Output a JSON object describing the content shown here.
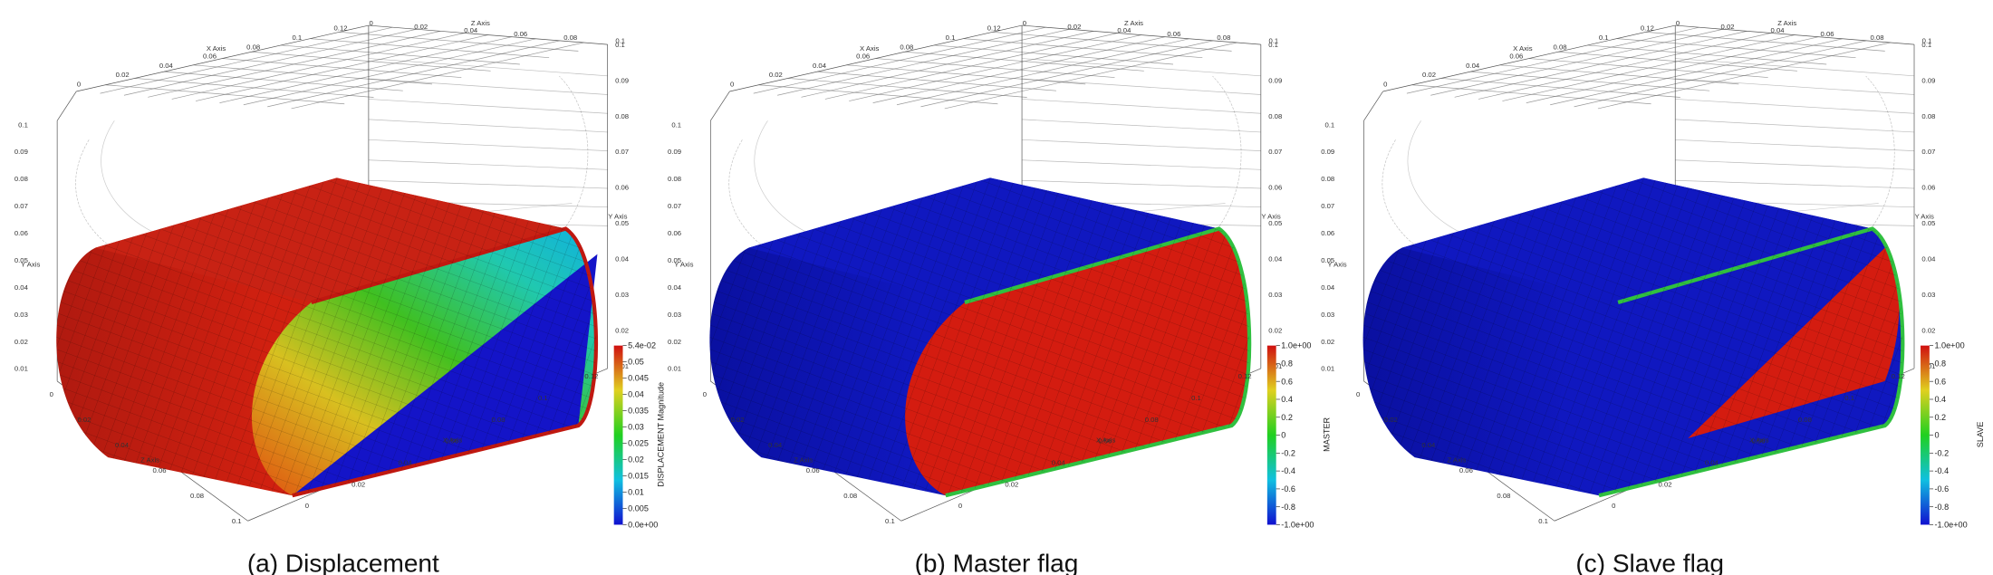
{
  "axes": {
    "x_title": "X Axis",
    "y_title": "Y Axis",
    "z_title": "Z Axis",
    "x_ticks": [
      "0",
      "0.02",
      "0.04",
      "0.06",
      "0.08",
      "0.1",
      "0.12"
    ],
    "y_ticks": [
      "0.01",
      "0.02",
      "0.03",
      "0.04",
      "0.05",
      "0.06",
      "0.07",
      "0.08",
      "0.09",
      "0.1"
    ],
    "z_ticks": [
      "0",
      "0.02",
      "0.04",
      "0.06",
      "0.08",
      "0.1"
    ]
  },
  "panels": [
    {
      "caption": "(a) Displacement",
      "colorbar": {
        "title": "DISPLACEMENT Magnitude",
        "ticks": [
          "5.4e-02",
          "0.05",
          "0.045",
          "0.04",
          "0.035",
          "0.03",
          "0.025",
          "0.02",
          "0.015",
          "0.01",
          "0.005",
          "0.0e+00"
        ]
      }
    },
    {
      "caption": "(b) Master flag",
      "colorbar": {
        "title": "MASTER",
        "ticks": [
          "1.0e+00",
          "0.8",
          "0.6",
          "0.4",
          "0.2",
          "0",
          "-0.2",
          "-0.4",
          "-0.6",
          "-0.8",
          "-1.0e+00"
        ]
      }
    },
    {
      "caption": "(c) Slave flag",
      "colorbar": {
        "title": "SLAVE",
        "ticks": [
          "1.0e+00",
          "0.8",
          "0.6",
          "0.4",
          "0.2",
          "0",
          "-0.2",
          "-0.4",
          "-0.6",
          "-0.8",
          "-1.0e+00"
        ]
      }
    }
  ]
}
